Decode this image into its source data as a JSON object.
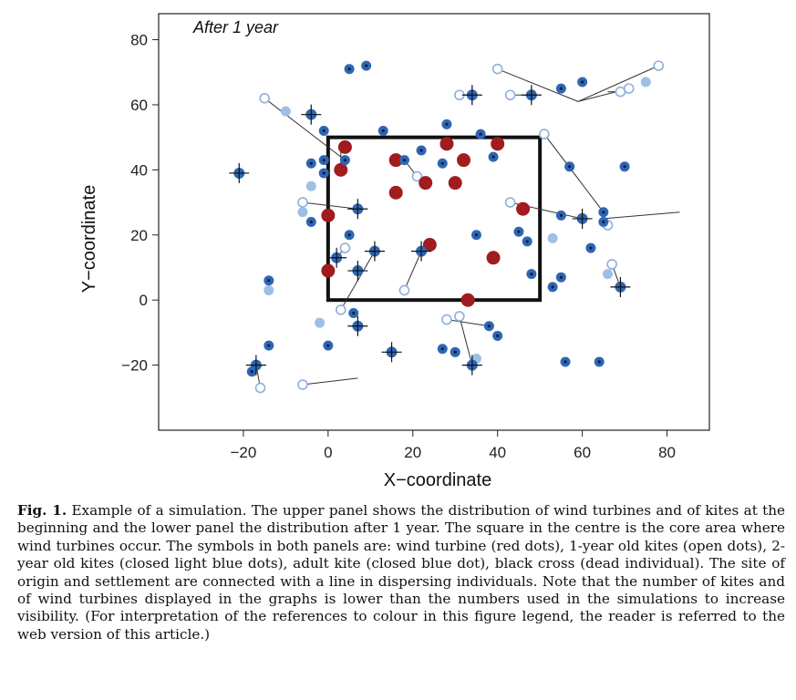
{
  "chart_data": {
    "type": "scatter",
    "title": "After 1 year",
    "xlabel": "X−coordinate",
    "ylabel": "Y−coordinate",
    "xlim": [
      -40,
      90
    ],
    "ylim": [
      -40,
      88
    ],
    "xticks": [
      "−20",
      "0",
      "20",
      "40",
      "60",
      "80"
    ],
    "xtick_values": [
      -20,
      0,
      20,
      40,
      60,
      80
    ],
    "yticks": [
      "−20",
      "0",
      "20",
      "40",
      "60",
      "80"
    ],
    "ytick_values": [
      -20,
      0,
      20,
      40,
      60,
      80
    ],
    "grid": false,
    "core_area": {
      "x": [
        0,
        50
      ],
      "y": [
        0,
        50
      ]
    },
    "colors": {
      "turbine": "#a01c1e",
      "adult": "#2f66b3",
      "adult_center": "#0d1f3f",
      "young2": "#9cc0e6",
      "young1_ring": "#8fb0da",
      "dead_cross": "#111111",
      "line": "#333333"
    },
    "series": [
      {
        "kind": "turbine",
        "points": [
          [
            4,
            47
          ],
          [
            3,
            40
          ],
          [
            16,
            43
          ],
          [
            28,
            48
          ],
          [
            40,
            48
          ],
          [
            32,
            43
          ],
          [
            16,
            33
          ],
          [
            23,
            36
          ],
          [
            30,
            36
          ],
          [
            0,
            26
          ],
          [
            46,
            28
          ],
          [
            24,
            17
          ],
          [
            0,
            9
          ],
          [
            39,
            13
          ],
          [
            33,
            0
          ]
        ]
      },
      {
        "kind": "adult",
        "points": [
          [
            5,
            71
          ],
          [
            9,
            72
          ],
          [
            60,
            67
          ],
          [
            55,
            65
          ],
          [
            -1,
            52
          ],
          [
            13,
            52
          ],
          [
            28,
            54
          ],
          [
            36,
            51
          ],
          [
            -4,
            42
          ],
          [
            -1,
            43
          ],
          [
            4,
            43
          ],
          [
            18,
            43
          ],
          [
            22,
            46
          ],
          [
            27,
            42
          ],
          [
            39,
            44
          ],
          [
            57,
            41
          ],
          [
            70,
            41
          ],
          [
            -1,
            39
          ],
          [
            -4,
            24
          ],
          [
            5,
            20
          ],
          [
            35,
            20
          ],
          [
            45,
            21
          ],
          [
            47,
            18
          ],
          [
            55,
            26
          ],
          [
            65,
            27
          ],
          [
            65,
            24
          ],
          [
            62,
            16
          ],
          [
            48,
            8
          ],
          [
            55,
            7
          ],
          [
            53,
            4
          ],
          [
            -14,
            6
          ],
          [
            6,
            -4
          ],
          [
            38,
            -8
          ],
          [
            40,
            -11
          ],
          [
            27,
            -15
          ],
          [
            30,
            -16
          ],
          [
            -14,
            -14
          ],
          [
            0,
            -14
          ],
          [
            -18,
            -22
          ],
          [
            56,
            -19
          ],
          [
            64,
            -19
          ]
        ]
      },
      {
        "kind": "young2",
        "points": [
          [
            -10,
            58
          ],
          [
            75,
            67
          ],
          [
            -4,
            35
          ],
          [
            -6,
            27
          ],
          [
            53,
            19
          ],
          [
            66,
            8
          ],
          [
            -14,
            3
          ],
          [
            -2,
            -7
          ],
          [
            35,
            -18
          ]
        ]
      },
      {
        "kind": "young1",
        "points": [
          [
            -15,
            62
          ],
          [
            40,
            71
          ],
          [
            43,
            63
          ],
          [
            78,
            72
          ],
          [
            71,
            65
          ],
          [
            31,
            63
          ],
          [
            51,
            51
          ],
          [
            69,
            64
          ],
          [
            21,
            38
          ],
          [
            -6,
            30
          ],
          [
            43,
            30
          ],
          [
            66,
            23
          ],
          [
            4,
            16
          ],
          [
            18,
            3
          ],
          [
            3,
            -3
          ],
          [
            31,
            -5
          ],
          [
            28,
            -6
          ],
          [
            -16,
            -27
          ],
          [
            -6,
            -26
          ],
          [
            67,
            11
          ]
        ]
      },
      {
        "kind": "dead",
        "points": [
          [
            -21,
            39
          ],
          [
            -4,
            57
          ],
          [
            34,
            63
          ],
          [
            48,
            63
          ],
          [
            7,
            28
          ],
          [
            60,
            25
          ],
          [
            2,
            13
          ],
          [
            11,
            15
          ],
          [
            22,
            15
          ],
          [
            7,
            9
          ],
          [
            7,
            -8
          ],
          [
            15,
            -16
          ],
          [
            34,
            -20
          ],
          [
            69,
            4
          ],
          [
            -17,
            -20
          ]
        ]
      }
    ],
    "dispersal_lines": [
      [
        [
          -15,
          62
        ],
        [
          4,
          43
        ]
      ],
      [
        [
          40,
          71
        ],
        [
          59,
          61
        ]
      ],
      [
        [
          78,
          72
        ],
        [
          59,
          61
        ]
      ],
      [
        [
          71,
          65
        ],
        [
          59,
          61
        ]
      ],
      [
        [
          43,
          63
        ],
        [
          48,
          63
        ]
      ],
      [
        [
          31,
          63
        ],
        [
          34,
          63
        ]
      ],
      [
        [
          51,
          51
        ],
        [
          65,
          27
        ]
      ],
      [
        [
          69,
          64
        ],
        [
          66,
          64
        ]
      ],
      [
        [
          21,
          38
        ],
        [
          18,
          43
        ]
      ],
      [
        [
          -6,
          30
        ],
        [
          7,
          28
        ]
      ],
      [
        [
          43,
          30
        ],
        [
          60,
          25
        ]
      ],
      [
        [
          83,
          27
        ],
        [
          65,
          25
        ]
      ],
      [
        [
          4,
          16
        ],
        [
          2,
          13
        ]
      ],
      [
        [
          18,
          3
        ],
        [
          22,
          15
        ]
      ],
      [
        [
          3,
          -3
        ],
        [
          11,
          15
        ]
      ],
      [
        [
          -6,
          -26
        ],
        [
          7,
          -24
        ]
      ],
      [
        [
          -16,
          -27
        ],
        [
          -17,
          -20
        ]
      ],
      [
        [
          31,
          -5
        ],
        [
          34,
          -20
        ]
      ],
      [
        [
          28,
          -6
        ],
        [
          38,
          -8
        ]
      ],
      [
        [
          67,
          11
        ],
        [
          69,
          4
        ]
      ],
      [
        [
          3,
          47
        ],
        [
          3,
          40
        ]
      ]
    ]
  },
  "caption": {
    "label": "Fig. 1.",
    "text": "Example of a simulation. The upper panel shows the distribution of wind turbines and of kites at the beginning and the lower panel the distribution after 1 year. The square in the centre is the core area where wind turbines occur. The symbols in both panels are: wind turbine (red dots), 1-year old kites (open dots), 2-year old kites (closed light blue dots), adult kite (closed blue dot), black cross (dead individual). The site of origin and settlement are connected with a line in dispersing individuals. Note that the number of kites and of wind turbines displayed in the graphs is lower than the numbers used in the simulations to increase visibility. (For interpretation of the references to colour in this figure legend, the reader is referred to the web version of this article.)"
  }
}
